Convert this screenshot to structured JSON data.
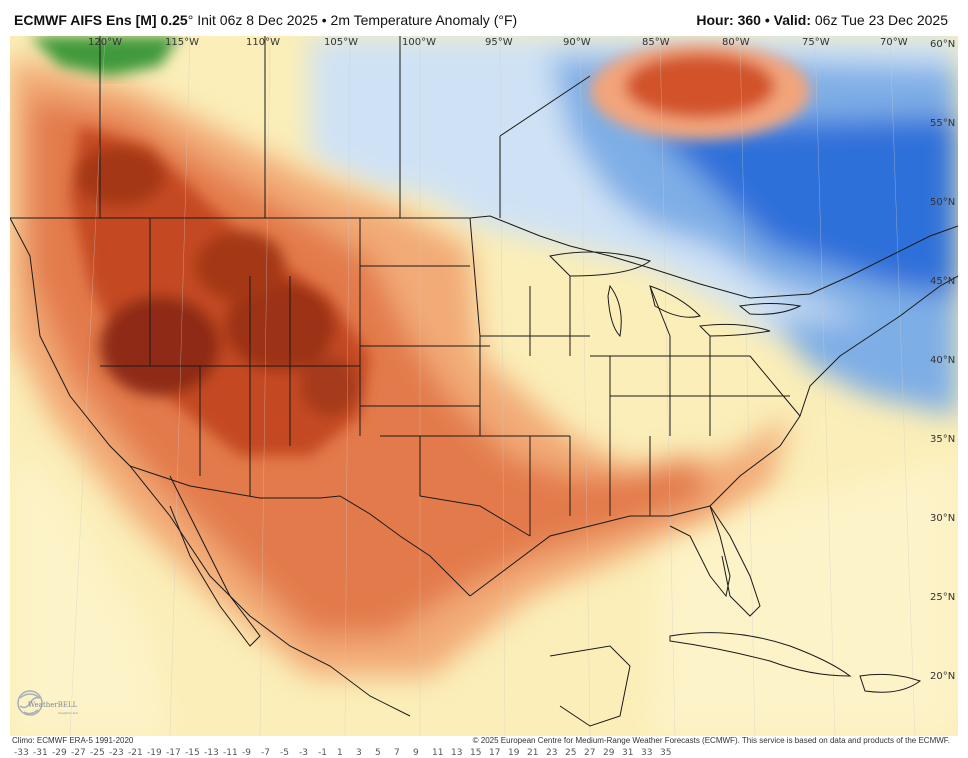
{
  "header": {
    "model_name": "ECMWF AIFS Ens [M]",
    "resolution": "0.25",
    "resolution_unit": "°",
    "init_text": "Init 06z 8 Dec 2025",
    "separator": "•",
    "field": "2m Temperature Anomaly (°F)",
    "hour_label": "Hour:",
    "hour_value": "360",
    "valid_label": "Valid:",
    "valid_value": "06z Tue 23 Dec 2025"
  },
  "longitude_labels": [
    "120°W",
    "115°W",
    "110°W",
    "105°W",
    "100°W",
    "95°W",
    "90°W",
    "85°W",
    "80°W",
    "75°W",
    "70°W"
  ],
  "latitude_labels": [
    "60°N",
    "55°N",
    "50°N",
    "45°N",
    "40°N",
    "35°N",
    "30°N",
    "25°N",
    "20°N"
  ],
  "footer": {
    "climo": "Climo: ECMWF ERA-5 1991-2020",
    "copyright": "© 2025 European Centre for Medium-Range Weather Forecasts (ECMWF). This service is based on data and products of the ECMWF."
  },
  "logo": {
    "text": "WeatherBELL",
    "subtext": "Analytics LLC"
  },
  "colors": {
    "warm_dark": "#8e2a14",
    "warm_mid": "#e37a4c",
    "warm_light": "#f2aa76",
    "neutral_pale": "#fbeeb8",
    "cool_light": "#cfe2f5",
    "cool_mid": "#7eaee6",
    "cool_dark": "#2f6fd9",
    "green_cold": "#3f9a3a",
    "water": "#fdf7da"
  },
  "scale_values": [
    "-33",
    "-31",
    "-29",
    "-27",
    "-25",
    "-23",
    "-21",
    "-19",
    "-17",
    "-15",
    "-13",
    "-11",
    "-9",
    "-7",
    "-5",
    "-3",
    "-1",
    "1",
    "3",
    "5",
    "7",
    "9",
    "11",
    "13",
    "15",
    "17",
    "19",
    "21",
    "23",
    "25",
    "27",
    "29",
    "31",
    "33",
    "35"
  ]
}
